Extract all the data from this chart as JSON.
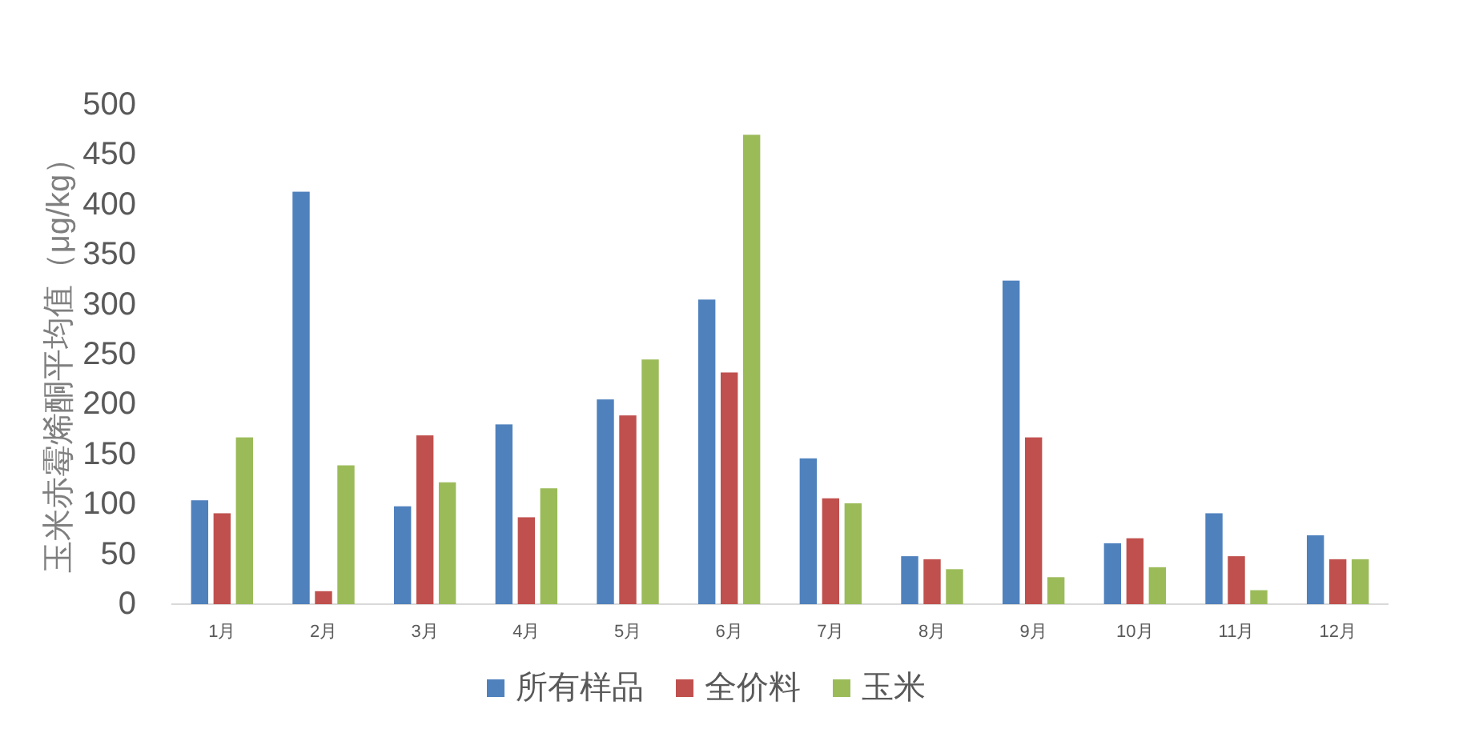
{
  "chart_data": {
    "type": "bar",
    "ylabel": "玉米赤霉烯酮平均值（μg/kg）",
    "categories": [
      "1月",
      "2月",
      "3月",
      "4月",
      "5月",
      "6月",
      "7月",
      "8月",
      "9月",
      "10月",
      "11月",
      "12月"
    ],
    "series": [
      {
        "name": "所有样品",
        "color": "#4f81bd",
        "values": [
          104,
          413,
          98,
          180,
          205,
          305,
          146,
          48,
          324,
          61,
          91,
          69
        ]
      },
      {
        "name": "全价料",
        "color": "#c0504d",
        "values": [
          91,
          13,
          169,
          87,
          189,
          232,
          106,
          45,
          167,
          66,
          48,
          45
        ]
      },
      {
        "name": "玉米",
        "color": "#9bbb59",
        "values": [
          167,
          139,
          122,
          116,
          245,
          470,
          101,
          35,
          27,
          37,
          14,
          45
        ]
      }
    ],
    "ylim": [
      0,
      500
    ],
    "yticks": [
      0,
      50,
      100,
      150,
      200,
      250,
      300,
      350,
      400,
      450,
      500
    ],
    "legend": "bottom"
  }
}
